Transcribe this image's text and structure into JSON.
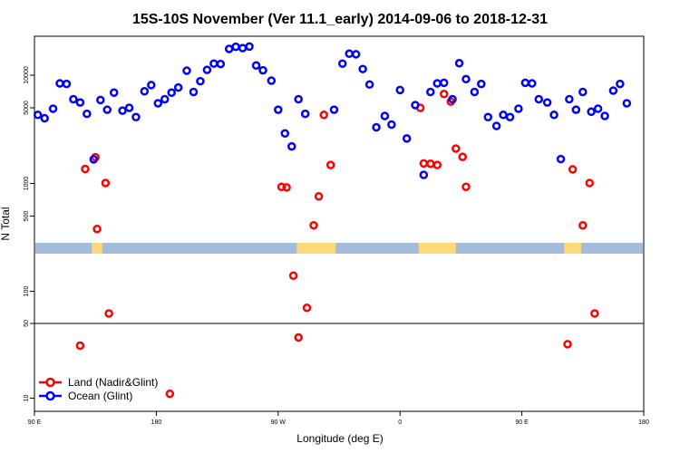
{
  "chart_data": {
    "type": "scatter",
    "title": "15S-10S November (Ver 11.1_early)   2014-09-06 to 2018-12-31",
    "xlabel": "Longitude (deg E)",
    "ylabel": "N Total",
    "x_range": [
      90,
      450
    ],
    "y_scale": "log",
    "x_ticks": [
      {
        "value": 90,
        "label": "90 E"
      },
      {
        "value": 162,
        "label": "180"
      },
      {
        "value": 234,
        "label": "90 W"
      },
      {
        "value": 306,
        "label": "0"
      },
      {
        "value": 378,
        "label": "90 E"
      },
      {
        "value": 450,
        "label": "180"
      }
    ],
    "y_ticks_upper": [
      {
        "value": 500,
        "label": "500"
      },
      {
        "value": 1000,
        "label": "1000"
      },
      {
        "value": 5000,
        "label": "5000"
      },
      {
        "value": 10000,
        "label": "10000"
      }
    ],
    "y_ticks_lower": [
      {
        "value": 10,
        "label": "10"
      },
      {
        "value": 50,
        "label": "50"
      },
      {
        "value": 100,
        "label": "100"
      }
    ],
    "threshold_line": 50,
    "land_mask_band": "land/ocean mask strip (blue = ocean, yellow = land)",
    "land_segments": [
      [
        124,
        130
      ],
      [
        245,
        268
      ],
      [
        317,
        339
      ],
      [
        403,
        413
      ]
    ],
    "legend": {
      "position": "bottom-left"
    },
    "colors": {
      "land": "#ff0000",
      "ocean": "#0000ff",
      "ocean_band": "#a3bcdc",
      "land_band": "#fed978"
    },
    "series": [
      {
        "name": "Land (Nadir&Glint)",
        "color": "#ff0000",
        "points": [
          [
            117,
            31
          ],
          [
            120,
            1360
          ],
          [
            126,
            1750
          ],
          [
            127,
            380
          ],
          [
            132,
            1010
          ],
          [
            134,
            62
          ],
          [
            170,
            11
          ],
          [
            236,
            930
          ],
          [
            239,
            920
          ],
          [
            243,
            140
          ],
          [
            246,
            37
          ],
          [
            251,
            70
          ],
          [
            255,
            410
          ],
          [
            258,
            760
          ],
          [
            261,
            4300
          ],
          [
            265,
            1480
          ],
          [
            318,
            5000
          ],
          [
            320,
            1530
          ],
          [
            324,
            1520
          ],
          [
            328,
            1480
          ],
          [
            332,
            6700
          ],
          [
            336,
            5700
          ],
          [
            339,
            2100
          ],
          [
            343,
            1760
          ],
          [
            345,
            930
          ],
          [
            405,
            32
          ],
          [
            408,
            1350
          ],
          [
            414,
            410
          ],
          [
            418,
            1010
          ],
          [
            421,
            62
          ]
        ]
      },
      {
        "name": "Ocean (Glint)",
        "color": "#0000ff",
        "points": [
          [
            92,
            4300
          ],
          [
            96,
            4000
          ],
          [
            101,
            4900
          ],
          [
            105,
            8400
          ],
          [
            109,
            8300
          ],
          [
            113,
            6000
          ],
          [
            117,
            5600
          ],
          [
            121,
            4400
          ],
          [
            125,
            1670
          ],
          [
            129,
            5900
          ],
          [
            133,
            4800
          ],
          [
            137,
            6900
          ],
          [
            142,
            4700
          ],
          [
            146,
            5000
          ],
          [
            150,
            4100
          ],
          [
            155,
            7100
          ],
          [
            159,
            8100
          ],
          [
            163,
            5500
          ],
          [
            167,
            6000
          ],
          [
            171,
            6900
          ],
          [
            175,
            7700
          ],
          [
            180,
            11000
          ],
          [
            184,
            7000
          ],
          [
            188,
            8800
          ],
          [
            192,
            11200
          ],
          [
            196,
            12800
          ],
          [
            200,
            12700
          ],
          [
            205,
            17500
          ],
          [
            209,
            18300
          ],
          [
            213,
            17800
          ],
          [
            217,
            18400
          ],
          [
            221,
            12300
          ],
          [
            225,
            11100
          ],
          [
            230,
            8900
          ],
          [
            234,
            4800
          ],
          [
            238,
            2900
          ],
          [
            242,
            2200
          ],
          [
            246,
            6000
          ],
          [
            250,
            4400
          ],
          [
            267,
            4800
          ],
          [
            272,
            12800
          ],
          [
            276,
            15800
          ],
          [
            280,
            15600
          ],
          [
            284,
            11400
          ],
          [
            288,
            8200
          ],
          [
            292,
            3300
          ],
          [
            297,
            4200
          ],
          [
            301,
            3500
          ],
          [
            306,
            7300
          ],
          [
            310,
            2600
          ],
          [
            315,
            5300
          ],
          [
            320,
            1200
          ],
          [
            324,
            7000
          ],
          [
            328,
            8400
          ],
          [
            332,
            8500
          ],
          [
            337,
            6000
          ],
          [
            341,
            12900
          ],
          [
            345,
            9200
          ],
          [
            350,
            7000
          ],
          [
            354,
            8300
          ],
          [
            358,
            4100
          ],
          [
            363,
            3400
          ],
          [
            367,
            4300
          ],
          [
            371,
            4100
          ],
          [
            376,
            4900
          ],
          [
            380,
            8500
          ],
          [
            384,
            8400
          ],
          [
            388,
            6000
          ],
          [
            393,
            5600
          ],
          [
            397,
            4300
          ],
          [
            401,
            1680
          ],
          [
            406,
            6000
          ],
          [
            410,
            4800
          ],
          [
            414,
            7000
          ],
          [
            419,
            4600
          ],
          [
            423,
            4900
          ],
          [
            427,
            4200
          ],
          [
            432,
            7200
          ],
          [
            436,
            8300
          ],
          [
            440,
            5500
          ]
        ]
      }
    ]
  }
}
